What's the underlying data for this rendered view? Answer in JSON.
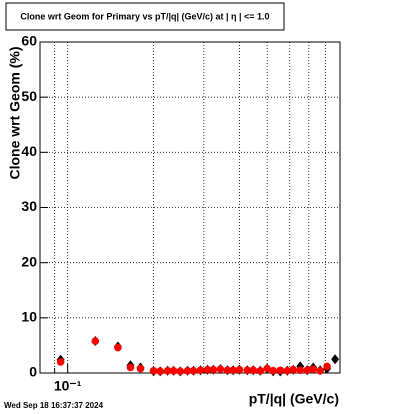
{
  "chart_data": {
    "type": "scatter",
    "title": "Clone wrt Geom for Primary vs pT/|q| (GeV/c) at |  η  | <= 1.0",
    "x_label": "pT/|q| (GeV/c)",
    "y_label": "Clone wrt Geom (%)",
    "timestamp": "Wed Sep 18 16:37:37 2024",
    "log_x": true,
    "grid": true,
    "xlim": [
      0.08,
      0.9
    ],
    "xticks": [
      {
        "value": 0.1,
        "label": "10⁻¹"
      }
    ],
    "xminor": [
      0.09,
      0.2,
      0.3,
      0.4,
      0.5,
      0.6,
      0.7,
      0.8
    ],
    "ylim": [
      0,
      60
    ],
    "yticks": [
      0,
      10,
      20,
      30,
      40,
      50,
      60
    ],
    "x": [
      0.0945,
      0.125,
      0.15,
      0.166,
      0.18,
      0.2,
      0.211,
      0.224,
      0.235,
      0.248,
      0.263,
      0.276,
      0.292,
      0.309,
      0.324,
      0.343,
      0.363,
      0.38,
      0.4,
      0.426,
      0.447,
      0.473,
      0.5,
      0.525,
      0.556,
      0.588,
      0.617,
      0.653,
      0.691,
      0.725,
      0.767,
      0.811,
      0.865
    ],
    "series": [
      {
        "name": "Geom",
        "color": "#000000",
        "marker": "diamond",
        "values": [
          2.4,
          5.8,
          4.8,
          1.4,
          1.0,
          0.3,
          0.3,
          0.4,
          0.4,
          0.3,
          0.4,
          0.4,
          0.5,
          0.6,
          0.6,
          0.7,
          0.5,
          0.5,
          0.6,
          0.5,
          0.5,
          0.4,
          0.8,
          0.3,
          0.3,
          0.4,
          0.6,
          1.2,
          0.5,
          1.0,
          0.5,
          0.8,
          2.5
        ]
      },
      {
        "name": "Primary",
        "color": "#ff0000",
        "marker": "circle",
        "values": [
          2.0,
          5.8,
          4.6,
          1.0,
          0.8,
          0.4,
          0.3,
          0.4,
          0.4,
          0.3,
          0.4,
          0.4,
          0.5,
          0.6,
          0.6,
          0.7,
          0.5,
          0.5,
          0.6,
          0.5,
          0.5,
          0.4,
          0.8,
          0.4,
          0.5,
          0.4,
          0.6,
          0.5,
          0.5,
          0.7,
          0.4,
          1.2,
          null
        ]
      }
    ]
  }
}
